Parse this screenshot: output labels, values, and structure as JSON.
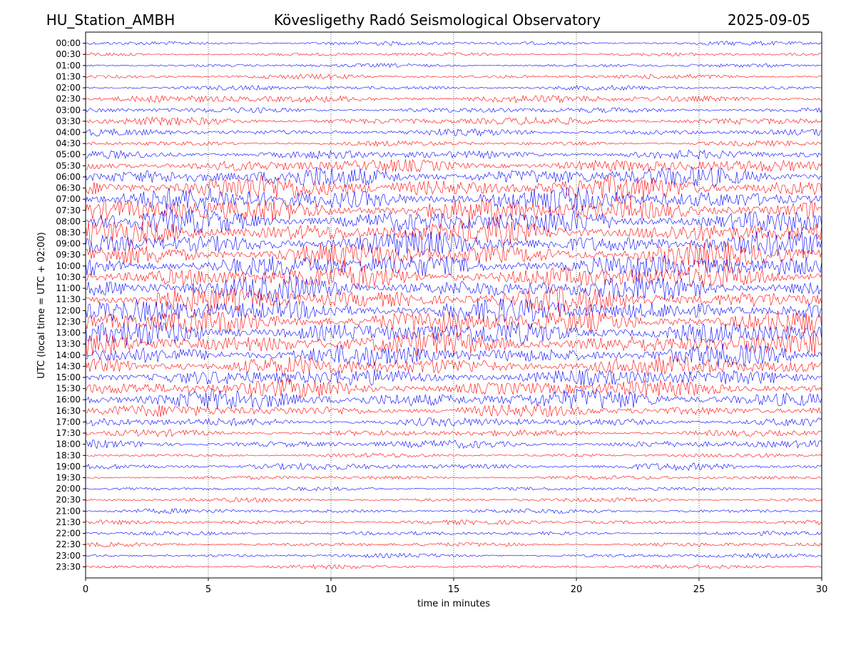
{
  "header": {
    "station": "HU_Station_AMBH",
    "observatory": "Kövesligethy Radó Seismological Observatory",
    "date": "2025-09-05"
  },
  "colors": {
    "series_a": "#0000ff",
    "series_b": "#ff0000",
    "axis": "#000000",
    "grid": "#000000",
    "background": "#ffffff"
  },
  "chart_data": {
    "type": "line",
    "title": "Kövesligethy Radó Seismological Observatory",
    "xlabel": "time in minutes",
    "ylabel": "UTC (local time = UTC + 02:00)",
    "xlim": [
      0,
      30
    ],
    "xticks": [
      0,
      5,
      10,
      15,
      20,
      25,
      30
    ],
    "grid_x": true,
    "grid_style": "dotted",
    "y_tick_labels": [
      "00:00",
      "00:30",
      "01:00",
      "01:30",
      "02:00",
      "02:30",
      "03:00",
      "03:30",
      "04:00",
      "04:30",
      "05:00",
      "05:30",
      "06:00",
      "06:30",
      "07:00",
      "07:30",
      "08:00",
      "08:30",
      "09:00",
      "09:30",
      "10:00",
      "10:30",
      "11:00",
      "11:30",
      "12:00",
      "12:30",
      "13:00",
      "13:30",
      "14:00",
      "14:30",
      "15:00",
      "15:30",
      "16:00",
      "16:30",
      "17:00",
      "17:30",
      "18:00",
      "18:30",
      "19:00",
      "19:30",
      "20:00",
      "20:30",
      "21:00",
      "21:30",
      "22:00",
      "22:30",
      "23:00",
      "23:30"
    ],
    "trace_color_pattern": [
      "blue",
      "red"
    ],
    "trace_activity_level": [
      0.08,
      0.05,
      0.06,
      0.1,
      0.1,
      0.25,
      0.15,
      0.25,
      0.2,
      0.12,
      0.3,
      0.5,
      0.8,
      1.0,
      1.0,
      1.0,
      1.0,
      1.0,
      1.0,
      1.0,
      1.0,
      1.0,
      1.0,
      1.0,
      1.0,
      1.0,
      1.0,
      1.0,
      0.85,
      0.8,
      0.7,
      0.7,
      0.8,
      0.45,
      0.3,
      0.2,
      0.25,
      0.08,
      0.2,
      0.07,
      0.06,
      0.08,
      0.1,
      0.1,
      0.08,
      0.08,
      0.08,
      0.07
    ]
  }
}
